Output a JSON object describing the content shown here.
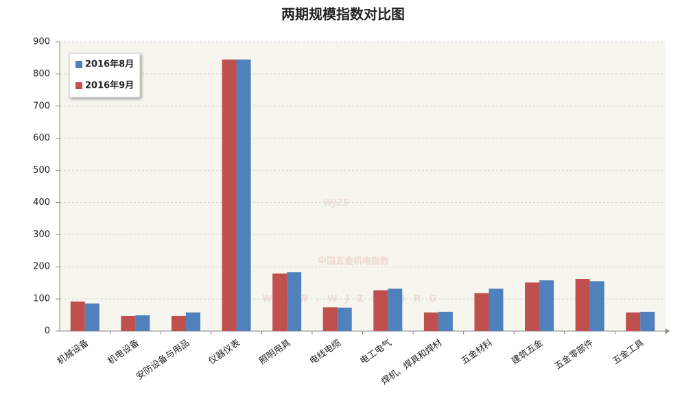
{
  "chart_data": {
    "type": "bar",
    "title": "两期规模指数对比图",
    "watermark": [
      "WJZS",
      "中国五金机电指数",
      "WWW.WJZS.ORG"
    ],
    "categories": [
      "机械设备",
      "机电设备",
      "安防设备与用品",
      "仪器仪表",
      "照明用具",
      "电线电缆",
      "电工电气",
      "焊机、焊具和焊材",
      "五金材料",
      "建筑五金",
      "五金零部件",
      "五金工具"
    ],
    "series": [
      {
        "name": "2016年8月",
        "color": "#4f81bd",
        "values": [
          86,
          49,
          58,
          845,
          183,
          73,
          132,
          60,
          132,
          158,
          155,
          60
        ]
      },
      {
        "name": "2016年9月",
        "color": "#c0504d",
        "values": [
          92,
          47,
          47,
          845,
          179,
          74,
          127,
          58,
          118,
          151,
          162,
          58
        ]
      }
    ],
    "ylim": [
      0,
      900
    ],
    "yticks": [
      0,
      100,
      200,
      300,
      400,
      500,
      600,
      700,
      800,
      900
    ],
    "grid": true,
    "legend": "top-left"
  }
}
